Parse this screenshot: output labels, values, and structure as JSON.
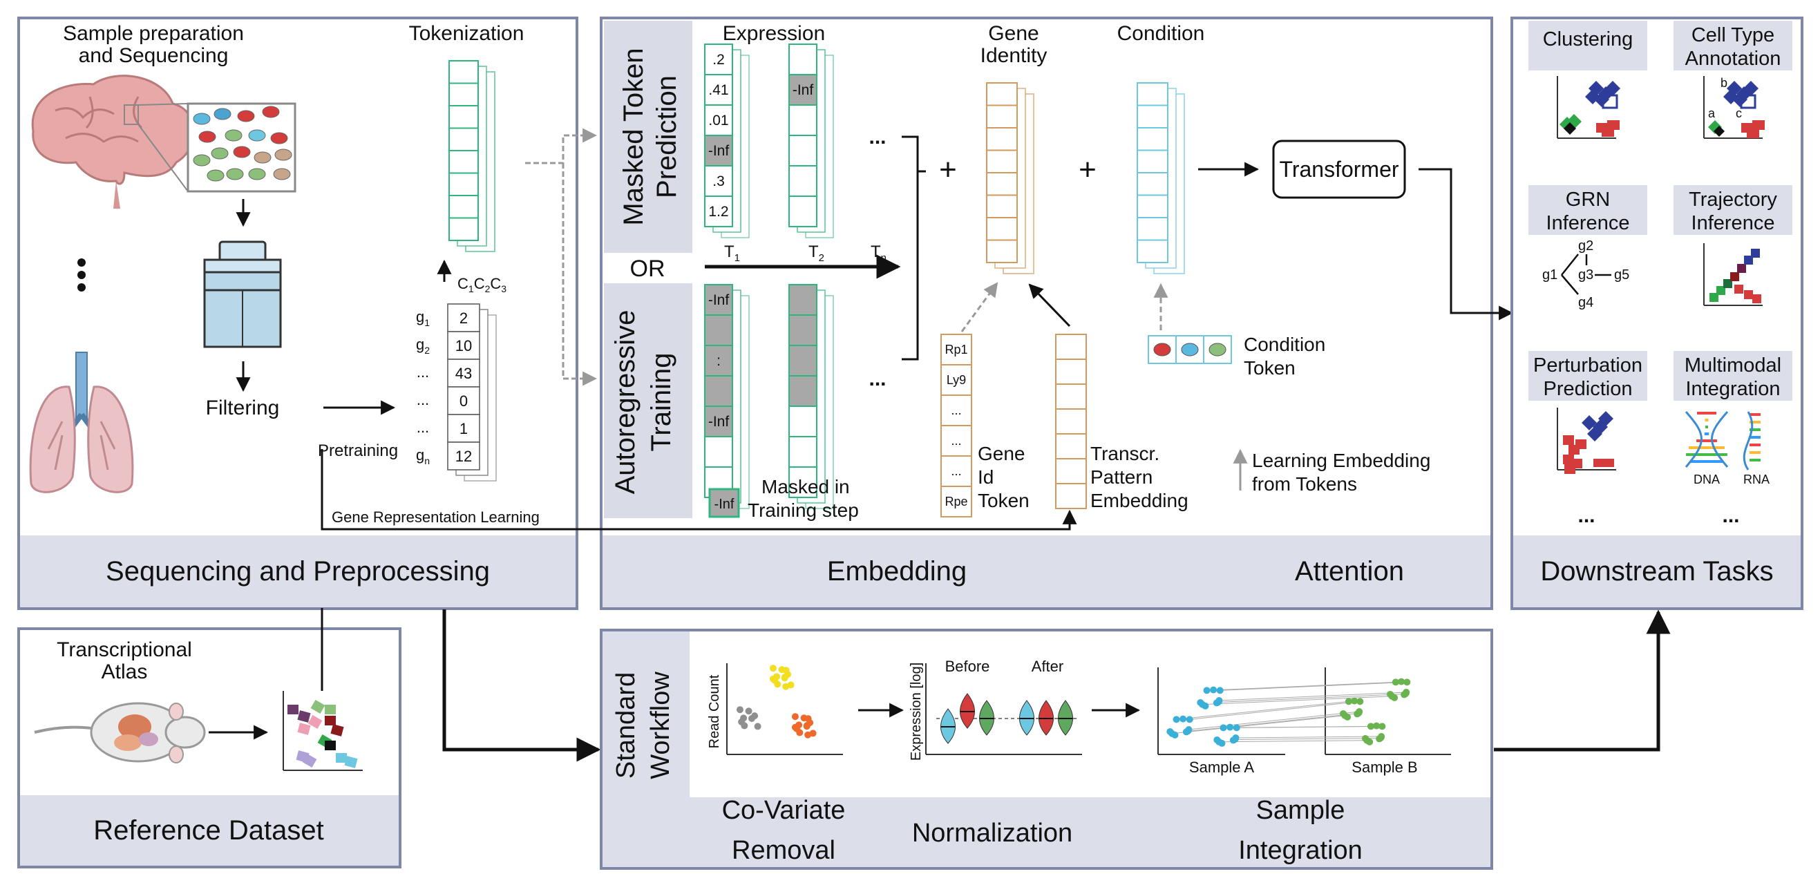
{
  "panels": {
    "sequencing": {
      "title": "Sequencing and Preprocessing",
      "sample_prep": "Sample preparation",
      "sequencing": "and Sequencing",
      "tokenization": "Tokenization",
      "filtering": "Filtering",
      "pretraining": "Pretraining",
      "grl": "Gene Representation Learning",
      "gene_rows": [
        {
          "label": "g",
          "sub": "1",
          "value": "2"
        },
        {
          "label": "g",
          "sub": "2",
          "value": "10"
        },
        {
          "label": "...",
          "sub": "",
          "value": "43"
        },
        {
          "label": "...",
          "sub": "",
          "value": "0"
        },
        {
          "label": "...",
          "sub": "",
          "value": "1"
        },
        {
          "label": "g",
          "sub": "n",
          "value": "12"
        }
      ],
      "cell_labels": [
        "C",
        "1",
        "C",
        "2",
        "C",
        "3"
      ]
    },
    "embedding": {
      "title": "Embedding",
      "attention": "Attention",
      "masked_line1": "Masked Token",
      "masked_line2": "Prediction",
      "or": "OR",
      "auto_line1": "Autoregressive",
      "auto_line2": "Training",
      "expression": "Expression",
      "expr_values": [
        ".2",
        ".41",
        ".01",
        "-Inf",
        ".3",
        "1.2"
      ],
      "inf": "-Inf",
      "dots": "...",
      "tick_labels": [
        {
          "t": "T",
          "s": "1"
        },
        {
          "t": "T",
          "s": "2"
        },
        {
          "t": "T",
          "s": "n"
        }
      ],
      "masked_in_1": "Masked in",
      "masked_in_2": "Training step",
      "plus": "+",
      "gene_identity_1": "Gene",
      "gene_identity_2": "Identity",
      "condition": "Condition",
      "transformer": "Transformer",
      "gene_id_tokens": [
        "Rp1",
        "Ly9",
        "...",
        "...",
        "...",
        "Rpe"
      ],
      "gene_id_label": [
        "Gene",
        "Id",
        "Token"
      ],
      "transcr_label": [
        "Transcr.",
        "Pattern",
        "Embedding"
      ],
      "condition_token": [
        "Condition",
        "Token"
      ],
      "learning_legend": [
        "Learning Embedding",
        "from Tokens"
      ]
    },
    "downstream": {
      "title": "Downstream Tasks",
      "tasks": [
        [
          "Clustering"
        ],
        [
          "Cell Type",
          "Annotation"
        ],
        [
          "GRN",
          "Inference"
        ],
        [
          "Trajectory",
          "Inference"
        ],
        [
          "Perturbation",
          "Prediction"
        ],
        [
          "Multimodal",
          "Integration"
        ]
      ],
      "grn_nodes": [
        "g1",
        "g2",
        "g3",
        "g4",
        "g5"
      ],
      "annot_letters": [
        "a",
        "b",
        "c"
      ],
      "dna": "DNA",
      "rna": "RNA",
      "dots": "..."
    },
    "reference": {
      "title": "Reference Dataset",
      "atlas_1": "Transcriptional",
      "atlas_2": "Atlas"
    },
    "workflow": {
      "side_1": "Standard",
      "side_2": "Workflow",
      "read_count": "Read Count",
      "expression_log": "Expression [log]",
      "before": "Before",
      "after": "After",
      "sample_a": "Sample A",
      "sample_b": "Sample B",
      "covariate_1": "Co-Variate",
      "covariate_2": "Removal",
      "normalization": "Normalization",
      "integration_1": "Sample",
      "integration_2": "Integration"
    }
  },
  "colors": {
    "panel_border": "#7f87a8",
    "footer_fill": "#dcdfe9",
    "side_fill": "#d9dce6",
    "token_green": "#2fb67c",
    "gene_orange": "#d29a5c",
    "cond_blue": "#6cc7e0",
    "mask_gray": "#a8a8a8"
  }
}
